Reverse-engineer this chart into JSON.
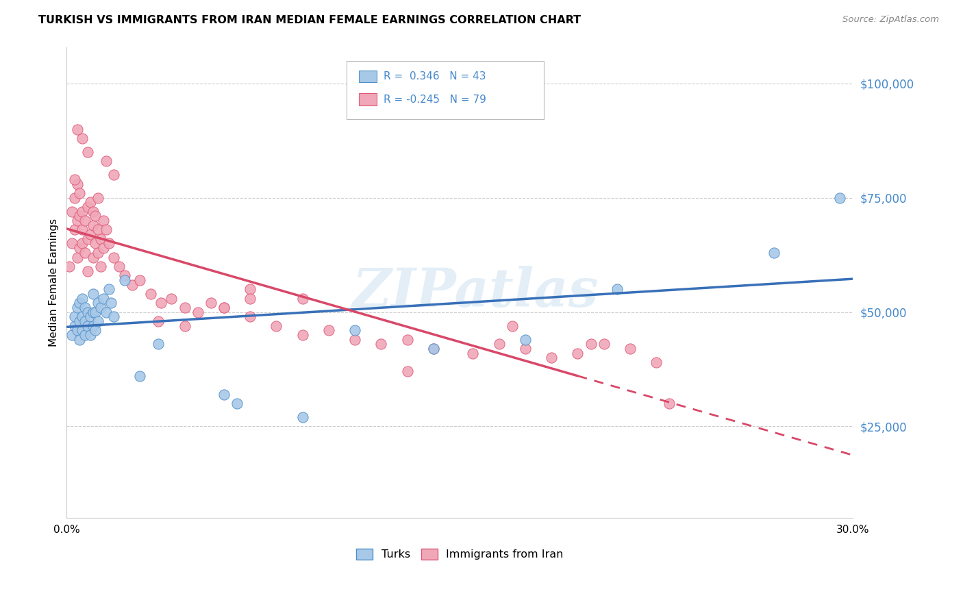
{
  "title": "TURKISH VS IMMIGRANTS FROM IRAN MEDIAN FEMALE EARNINGS CORRELATION CHART",
  "source": "Source: ZipAtlas.com",
  "ylabel": "Median Female Earnings",
  "y_tick_labels": [
    "$25,000",
    "$50,000",
    "$75,000",
    "$100,000"
  ],
  "y_tick_values": [
    25000,
    50000,
    75000,
    100000
  ],
  "ylim": [
    5000,
    108000
  ],
  "xlim": [
    0.0,
    0.3
  ],
  "watermark": "ZIPatlas",
  "blue_color": "#a8c8e8",
  "pink_color": "#f0a8b8",
  "blue_edge_color": "#5090c8",
  "pink_edge_color": "#e05878",
  "blue_line_color": "#3870b8",
  "pink_line_color": "#d84868",
  "r_color": "#4488cc",
  "grid_color": "#cccccc",
  "turks_x": [
    0.002,
    0.003,
    0.003,
    0.004,
    0.004,
    0.005,
    0.005,
    0.005,
    0.006,
    0.006,
    0.006,
    0.007,
    0.007,
    0.007,
    0.008,
    0.008,
    0.009,
    0.009,
    0.01,
    0.01,
    0.01,
    0.011,
    0.011,
    0.012,
    0.012,
    0.013,
    0.014,
    0.015,
    0.016,
    0.017,
    0.018,
    0.022,
    0.028,
    0.035,
    0.06,
    0.065,
    0.09,
    0.11,
    0.14,
    0.175,
    0.21,
    0.27,
    0.295
  ],
  "turks_y": [
    45000,
    47000,
    49000,
    46000,
    51000,
    44000,
    48000,
    52000,
    46000,
    49000,
    53000,
    45000,
    48000,
    51000,
    47000,
    50000,
    45000,
    49000,
    47000,
    50000,
    54000,
    46000,
    50000,
    48000,
    52000,
    51000,
    53000,
    50000,
    55000,
    52000,
    49000,
    57000,
    36000,
    43000,
    32000,
    30000,
    27000,
    46000,
    42000,
    44000,
    55000,
    63000,
    75000
  ],
  "iran_x": [
    0.001,
    0.002,
    0.002,
    0.003,
    0.003,
    0.004,
    0.004,
    0.004,
    0.005,
    0.005,
    0.005,
    0.006,
    0.006,
    0.006,
    0.007,
    0.007,
    0.008,
    0.008,
    0.008,
    0.009,
    0.009,
    0.01,
    0.01,
    0.01,
    0.011,
    0.011,
    0.012,
    0.012,
    0.013,
    0.013,
    0.014,
    0.014,
    0.015,
    0.016,
    0.018,
    0.02,
    0.022,
    0.025,
    0.028,
    0.032,
    0.036,
    0.04,
    0.045,
    0.05,
    0.055,
    0.06,
    0.07,
    0.08,
    0.09,
    0.1,
    0.11,
    0.12,
    0.13,
    0.14,
    0.155,
    0.165,
    0.175,
    0.185,
    0.195,
    0.205,
    0.215,
    0.225,
    0.07,
    0.06,
    0.045,
    0.09,
    0.015,
    0.018,
    0.012,
    0.008,
    0.006,
    0.004,
    0.003,
    0.035,
    0.07,
    0.13,
    0.17,
    0.2,
    0.23
  ],
  "iran_y": [
    60000,
    65000,
    72000,
    68000,
    75000,
    62000,
    70000,
    78000,
    64000,
    71000,
    76000,
    65000,
    72000,
    68000,
    63000,
    70000,
    66000,
    73000,
    59000,
    67000,
    74000,
    62000,
    69000,
    72000,
    65000,
    71000,
    63000,
    68000,
    60000,
    66000,
    64000,
    70000,
    68000,
    65000,
    62000,
    60000,
    58000,
    56000,
    57000,
    54000,
    52000,
    53000,
    51000,
    50000,
    52000,
    51000,
    49000,
    47000,
    45000,
    46000,
    44000,
    43000,
    44000,
    42000,
    41000,
    43000,
    42000,
    40000,
    41000,
    43000,
    42000,
    39000,
    55000,
    51000,
    47000,
    53000,
    83000,
    80000,
    75000,
    85000,
    88000,
    90000,
    79000,
    48000,
    53000,
    37000,
    47000,
    43000,
    30000
  ],
  "turks_size_scale": 120,
  "iran_size_scale": 120
}
